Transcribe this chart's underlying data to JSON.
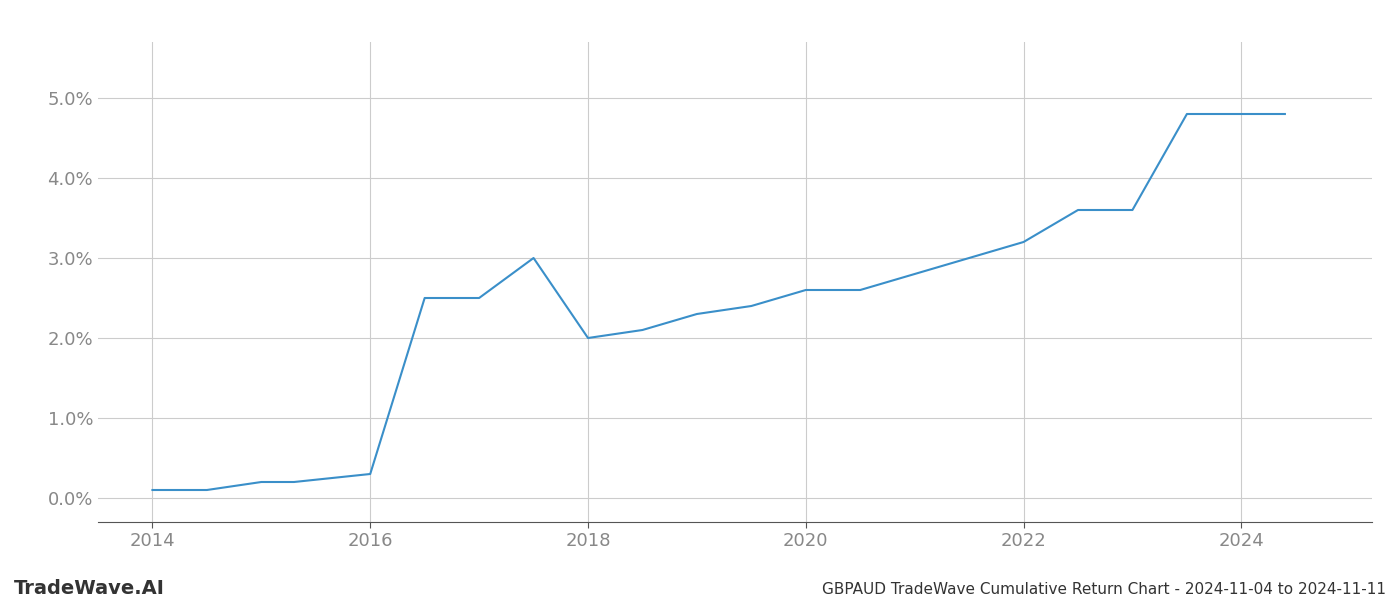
{
  "x_values": [
    2014.0,
    2014.5,
    2015.0,
    2015.3,
    2016.0,
    2016.5,
    2017.0,
    2017.5,
    2018.0,
    2018.5,
    2019.0,
    2019.5,
    2020.0,
    2020.5,
    2021.0,
    2021.5,
    2022.0,
    2022.5,
    2023.0,
    2023.5,
    2024.0,
    2024.4
  ],
  "y_values": [
    0.001,
    0.001,
    0.002,
    0.002,
    0.003,
    0.025,
    0.025,
    0.03,
    0.02,
    0.021,
    0.023,
    0.024,
    0.026,
    0.026,
    0.028,
    0.03,
    0.032,
    0.036,
    0.036,
    0.048,
    0.048,
    0.048
  ],
  "line_color": "#3a8fc9",
  "line_width": 1.5,
  "title": "GBPAUD TradeWave Cumulative Return Chart - 2024-11-04 to 2024-11-11",
  "xlim": [
    2013.5,
    2025.2
  ],
  "ylim": [
    -0.003,
    0.057
  ],
  "xticks": [
    2014,
    2016,
    2018,
    2020,
    2022,
    2024
  ],
  "yticks": [
    0.0,
    0.01,
    0.02,
    0.03,
    0.04,
    0.05
  ],
  "background_color": "#ffffff",
  "grid_color": "#cccccc",
  "watermark_text": "TradeWave.AI",
  "watermark_color": "#333333",
  "title_color": "#333333",
  "tick_color": "#888888",
  "axis_color": "#555555",
  "title_fontsize": 11,
  "tick_fontsize": 13,
  "watermark_fontsize": 14
}
